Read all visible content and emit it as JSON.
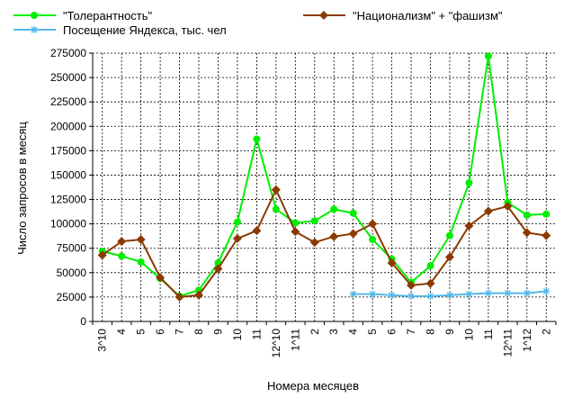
{
  "chart_data": {
    "type": "line",
    "title": "",
    "xlabel": "Номера месяцев",
    "ylabel": "Число запросов в месяц",
    "ylim": [
      0,
      275000
    ],
    "yticks": [
      0,
      25000,
      50000,
      75000,
      100000,
      125000,
      150000,
      175000,
      200000,
      225000,
      250000,
      275000
    ],
    "grid": "dashed vertical and horizontal",
    "legend_position": "top",
    "categories": [
      "3^10",
      "4",
      "5",
      "6",
      "7",
      "8",
      "9",
      "10",
      "11",
      "12^10",
      "1^11",
      "2",
      "3",
      "4",
      "5",
      "6",
      "7",
      "8",
      "9",
      "10",
      "11",
      "12^11",
      "1^12",
      "2"
    ],
    "series": [
      {
        "name": "\"Толерантность\"",
        "color": "#00ee00",
        "marker": "circle",
        "values": [
          72000,
          67000,
          61000,
          44000,
          26000,
          32000,
          60000,
          102000,
          187000,
          115000,
          101000,
          103000,
          115000,
          111000,
          84000,
          64000,
          40000,
          57000,
          88000,
          142000,
          272000,
          122000,
          109000,
          110000
        ]
      },
      {
        "name": "\"Национализм\" + \"фашизм\"",
        "color": "#8b3a00",
        "marker": "diamond",
        "values": [
          68000,
          82000,
          84000,
          45000,
          25000,
          27000,
          54000,
          85000,
          93000,
          135000,
          92000,
          81000,
          87000,
          90000,
          100000,
          60000,
          37000,
          39000,
          66000,
          98000,
          113000,
          118000,
          91000,
          88000
        ]
      },
      {
        "name": "Посещение Яндекса, тыс. чел",
        "color": "#55b8e8",
        "marker": "asterisk",
        "values": [
          null,
          null,
          null,
          null,
          null,
          null,
          null,
          null,
          null,
          null,
          null,
          null,
          null,
          28000,
          28000,
          27000,
          26000,
          26000,
          27000,
          28000,
          29000,
          29000,
          29000,
          31000
        ]
      }
    ]
  }
}
